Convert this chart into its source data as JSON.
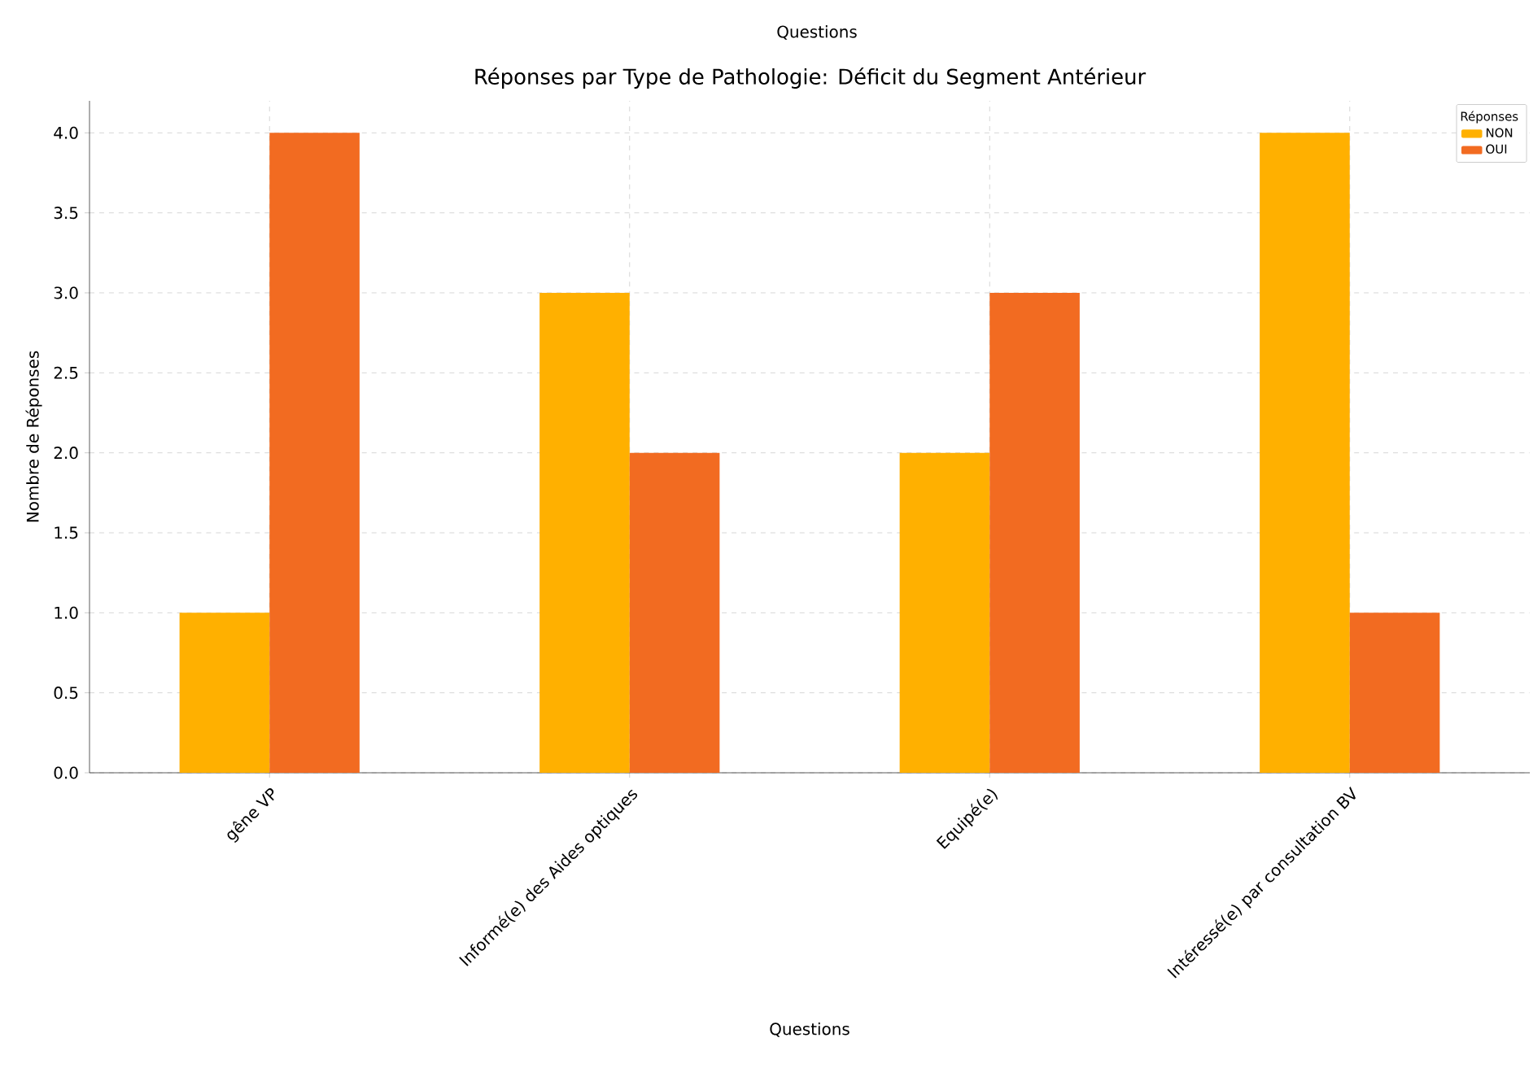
{
  "chart_data": {
    "type": "bar",
    "title": "Réponses par Type de Pathologie: Déficit du Segment Antérieur",
    "xlabel": "Questions",
    "ylabel": "Nombre de Réponses",
    "legend_title": "Réponses",
    "categories": [
      "gêne VP",
      "Informé(e) des Aides optiques",
      "Equipé(e)",
      "Intéressé(e) par consultation BV"
    ],
    "series": [
      {
        "name": "NON",
        "color": "#ffb000",
        "values": [
          1,
          3,
          2,
          4
        ]
      },
      {
        "name": "OUI",
        "color": "#f26b21",
        "values": [
          4,
          2,
          3,
          1
        ]
      }
    ],
    "ylim": [
      0,
      4.2
    ],
    "yticks": [
      {
        "value": 0,
        "label": "0.0"
      },
      {
        "value": 0.5,
        "label": "0.5"
      },
      {
        "value": 1,
        "label": "1.0"
      },
      {
        "value": 1.5,
        "label": "1.5"
      },
      {
        "value": 2,
        "label": "2.0"
      },
      {
        "value": 2.5,
        "label": "2.5"
      },
      {
        "value": 3,
        "label": "3.0"
      },
      {
        "value": 3.5,
        "label": "3.5"
      },
      {
        "value": 4,
        "label": "4.0"
      }
    ],
    "grid": true,
    "legend": "top right",
    "annotations": [
      "Questions"
    ]
  }
}
